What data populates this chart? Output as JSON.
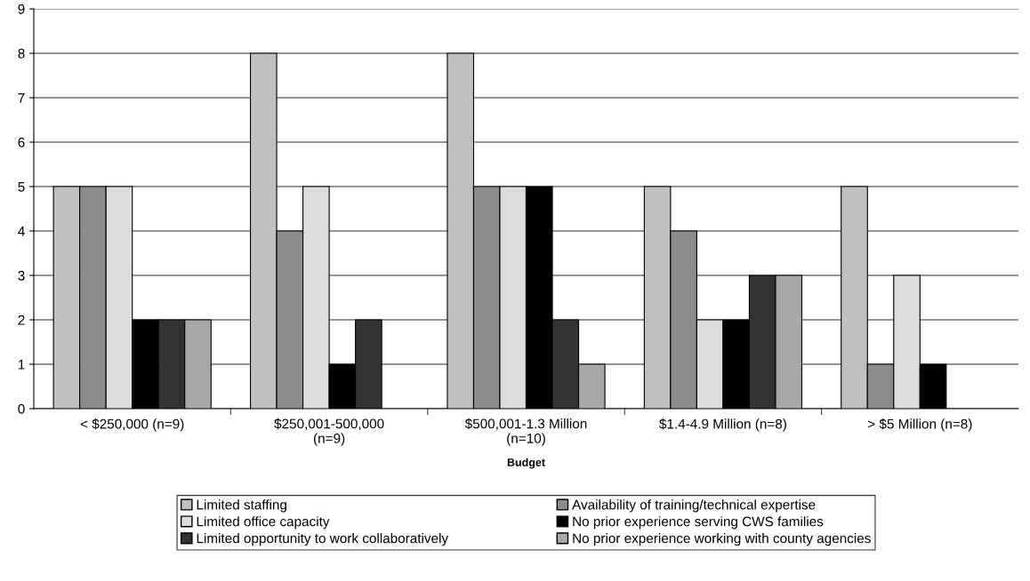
{
  "chart_data": {
    "type": "bar",
    "xlabel": "Budget",
    "categories": [
      "< $250,000 (n=9)",
      "$250,001-500,000\n(n=9)",
      "$500,001-1.3 Million\n(n=10)",
      "$1.4-4.9 Million (n=8)",
      "> $5 Million (n=8)"
    ],
    "series": [
      {
        "name": "Limited staffing",
        "color": "#c0c0c0",
        "values": [
          5,
          8,
          8,
          5,
          5
        ]
      },
      {
        "name": "Availability of training/technical expertise",
        "color": "#8c8c8c",
        "values": [
          5,
          4,
          5,
          4,
          1
        ]
      },
      {
        "name": "Limited office capacity",
        "color": "#dcdcdc",
        "values": [
          5,
          5,
          5,
          2,
          3
        ]
      },
      {
        "name": "No prior experience serving CWS families",
        "color": "#000000",
        "values": [
          2,
          1,
          5,
          2,
          1
        ]
      },
      {
        "name": "Limited opportunity to work collaboratively",
        "color": "#333333",
        "values": [
          2,
          2,
          2,
          3,
          null
        ]
      },
      {
        "name": "No prior experience working with county agencies",
        "color": "#a8a8a8",
        "values": [
          2,
          null,
          1,
          3,
          null
        ]
      }
    ],
    "ylim": [
      0,
      9
    ],
    "yticks": [
      0,
      1,
      2,
      3,
      4,
      5,
      6,
      7,
      8,
      9
    ],
    "grid": "y",
    "legend": "bottom"
  }
}
